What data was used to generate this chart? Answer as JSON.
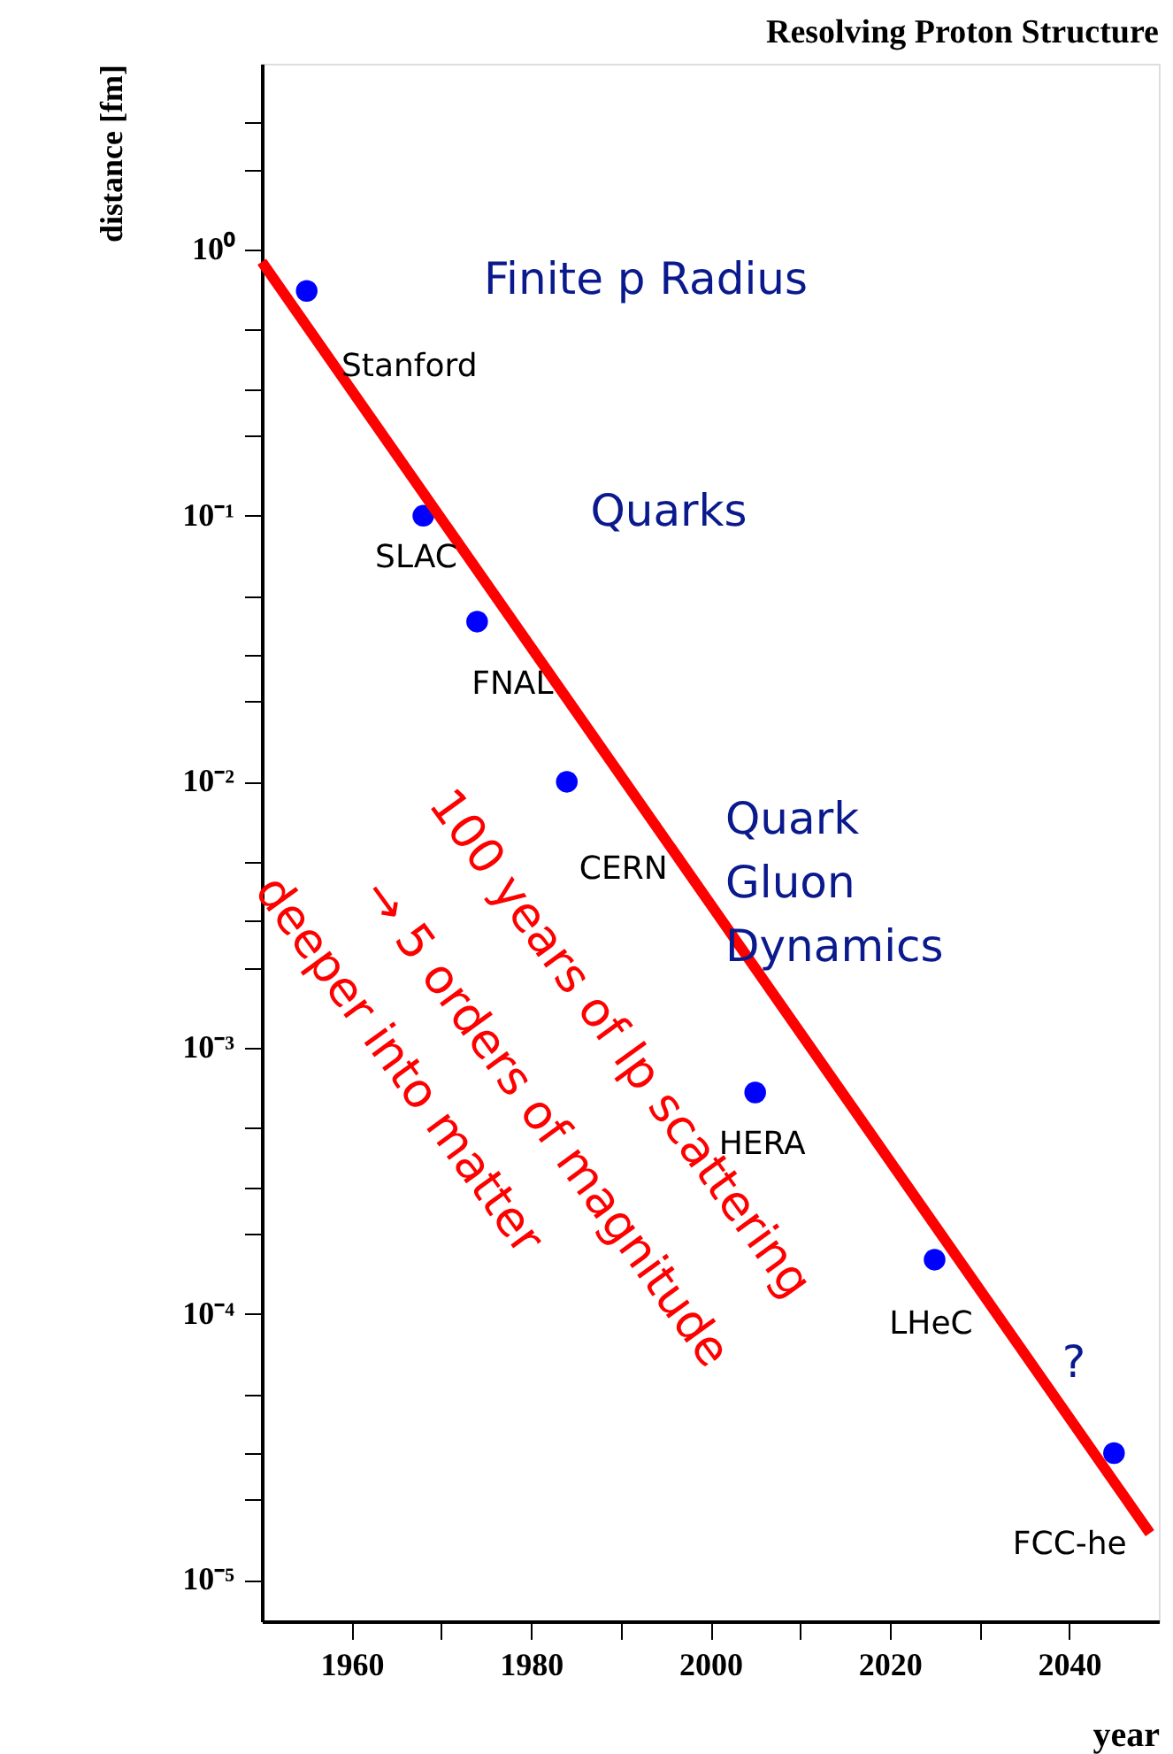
{
  "chart_data": {
    "type": "scatter",
    "title": "Resolving Proton Structure",
    "xlabel": "year",
    "ylabel": "distance [fm]",
    "series": [
      {
        "color": "#0000ff",
        "marker": "circle",
        "x": [
          1955,
          1968,
          1974,
          1984,
          2005,
          2025,
          2045
        ],
        "values": [
          0.7,
          0.1,
          0.04,
          0.01,
          0.00068,
          0.00016,
          3e-05
        ]
      },
      {
        "type": "line",
        "color": "#ff0000",
        "line_style": "solid",
        "marker": "none",
        "x": [
          1950,
          2049
        ],
        "values": [
          0.9,
          1.5e-05
        ]
      }
    ],
    "xlim": [
      1950,
      2050
    ],
    "ylim": [
      7e-06,
      5
    ],
    "log": "y",
    "grid": false,
    "xticks": [
      1960,
      {
        "value": 1970,
        "label": null
      },
      1980,
      {
        "value": 1990,
        "label": null
      },
      2000,
      {
        "value": 2010,
        "label": null
      },
      2020,
      {
        "value": 2030,
        "label": null
      },
      2040
    ],
    "yticks": [
      {
        "value": 1e-05,
        "label": "10⁻⁵"
      },
      {
        "value": 2e-05,
        "label": null
      },
      {
        "value": 3e-05,
        "label": null
      },
      {
        "value": 5e-05,
        "label": null
      },
      {
        "value": 0.0001,
        "label": "10⁻⁴"
      },
      {
        "value": 0.0002,
        "label": null
      },
      {
        "value": 0.0003,
        "label": null
      },
      {
        "value": 0.0005,
        "label": null
      },
      {
        "value": 0.001,
        "label": "10⁻³"
      },
      {
        "value": 0.002,
        "label": null
      },
      {
        "value": 0.003,
        "label": null
      },
      {
        "value": 0.005,
        "label": null
      },
      {
        "value": 0.01,
        "label": "10⁻²"
      },
      {
        "value": 0.02,
        "label": null
      },
      {
        "value": 0.03,
        "label": null
      },
      {
        "value": 0.05,
        "label": null
      },
      {
        "value": 0.1,
        "label": "10⁻¹"
      },
      {
        "value": 0.2,
        "label": null
      },
      {
        "value": 0.3,
        "label": null
      },
      {
        "value": 0.5,
        "label": null
      },
      {
        "value": 1,
        "label": "10⁰"
      },
      {
        "value": 2,
        "label": null
      },
      {
        "value": 3,
        "label": null
      }
    ],
    "annotations": [
      {
        "text": "Stanford",
        "x": 1955,
        "y": 0.7
      },
      {
        "text": "SLAC",
        "x": 1968,
        "y": 0.1
      },
      {
        "text": "FNAL",
        "x": 1974,
        "y": 0.04
      },
      {
        "text": "CERN",
        "x": 1984,
        "y": 0.01
      },
      {
        "text": "HERA",
        "x": 2005,
        "y": 0.00068
      },
      {
        "text": "LHeC",
        "x": 2025,
        "y": 0.00016
      },
      {
        "text": "FCC-he",
        "x": 2045,
        "y": 3e-05
      },
      "Finite p Radius",
      "Quarks",
      "Quark\nGluon\nDynamics",
      "?",
      "100 years of lp scattering",
      "→ 5 orders of magnitude",
      "deeper into matter"
    ]
  }
}
